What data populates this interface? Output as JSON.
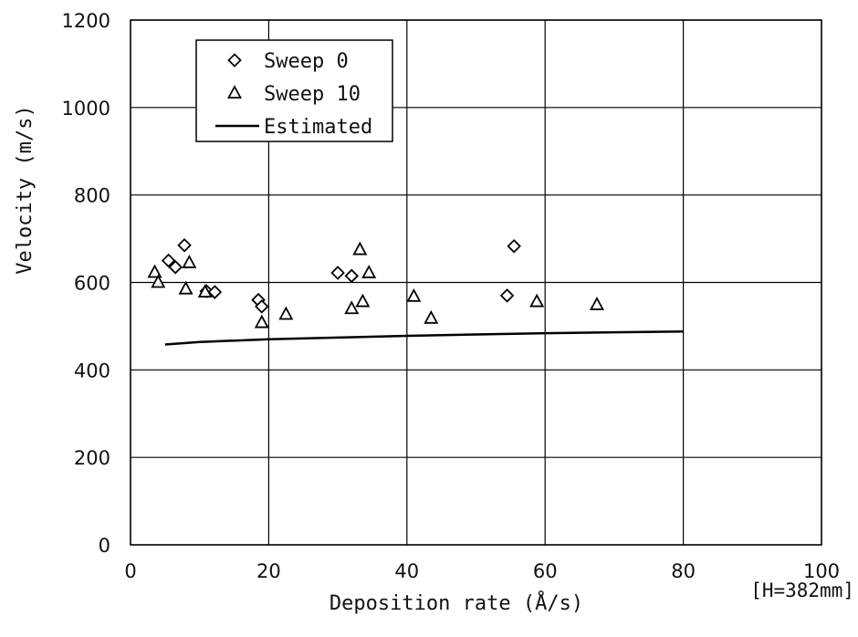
{
  "chart_data": {
    "type": "scatter",
    "title": "",
    "xlabel": "Deposition rate (Å/s)",
    "ylabel": "Velocity (m/s)",
    "xlim": [
      0,
      100
    ],
    "ylim": [
      0,
      1200
    ],
    "xticks": [
      0,
      20,
      40,
      60,
      80,
      100
    ],
    "yticks": [
      0,
      200,
      400,
      600,
      800,
      1000,
      1200
    ],
    "grid": true,
    "legend_position": "top-left",
    "annotation": "[H=382mm]",
    "colors": {
      "ink": "#000000",
      "grid": "#000000",
      "background": "#ffffff"
    },
    "series": [
      {
        "name": "Sweep 0",
        "marker": "diamond",
        "points": [
          [
            5.5,
            650
          ],
          [
            6.5,
            635
          ],
          [
            7.8,
            685
          ],
          [
            11,
            580
          ],
          [
            12.2,
            578
          ],
          [
            18.5,
            560
          ],
          [
            19,
            545
          ],
          [
            30,
            622
          ],
          [
            32,
            615
          ],
          [
            54.5,
            570
          ],
          [
            55.5,
            683
          ]
        ]
      },
      {
        "name": "Sweep 10",
        "marker": "triangle",
        "points": [
          [
            3.5,
            623
          ],
          [
            4,
            600
          ],
          [
            8,
            585
          ],
          [
            8.5,
            645
          ],
          [
            10.8,
            578
          ],
          [
            19,
            508
          ],
          [
            22.5,
            527
          ],
          [
            32,
            540
          ],
          [
            33.2,
            675
          ],
          [
            33.6,
            556
          ],
          [
            34.5,
            622
          ],
          [
            41,
            568
          ],
          [
            43.5,
            518
          ],
          [
            58.8,
            556
          ],
          [
            67.5,
            549
          ]
        ]
      },
      {
        "name": "Estimated",
        "marker": "line",
        "points": [
          [
            5,
            458
          ],
          [
            10,
            464
          ],
          [
            20,
            470
          ],
          [
            30,
            474
          ],
          [
            40,
            478
          ],
          [
            50,
            481
          ],
          [
            60,
            484
          ],
          [
            70,
            486
          ],
          [
            80,
            488
          ]
        ]
      }
    ]
  }
}
